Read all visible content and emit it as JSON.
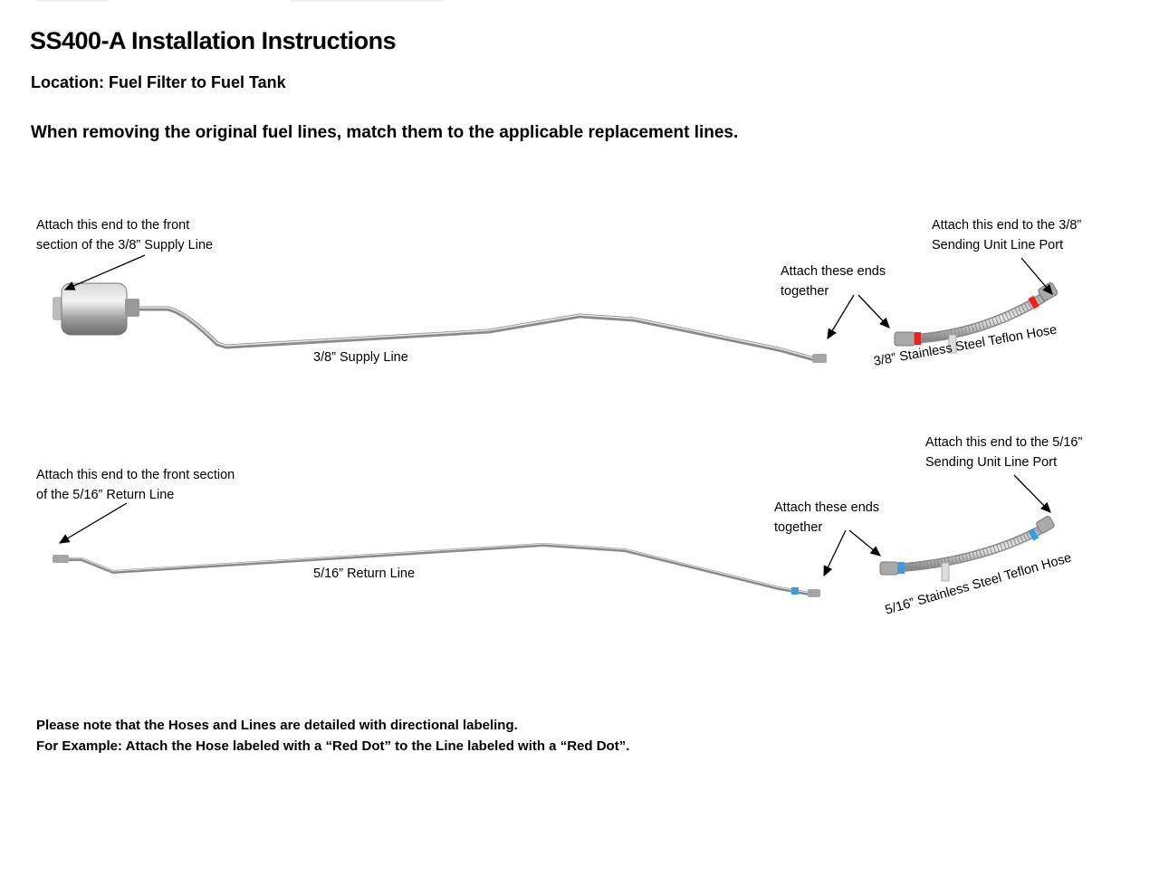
{
  "title": "SS400-A Installation Instructions",
  "location": "Location: Fuel Filter to Fuel Tank",
  "instruction": "When removing the original fuel lines, match them to the applicable replacement lines.",
  "supply": {
    "front_label_1": "Attach this end to the  front",
    "front_label_2": "section of the 3/8” Supply Line",
    "line_label": "3/8” Supply Line",
    "together_1": "Attach these ends",
    "together_2": "together",
    "port_1": "Attach this end to the 3/8”",
    "port_2": "Sending Unit Line Port",
    "hose_label": "3/8” Stainless Steel Teflon Hose",
    "mark_color": "#e8231f"
  },
  "return": {
    "front_label_1": "Attach this end to the front section",
    "front_label_2": "of the 5/16” Return Line",
    "line_label": "5/16” Return Line",
    "together_1": "Attach these ends",
    "together_2": "together",
    "port_1": "Attach this end to the 5/16”",
    "port_2": "Sending Unit Line Port",
    "hose_label": "5/16” Stainless Steel Teflon Hose",
    "mark_color": "#3a9be0"
  },
  "notes": [
    "Please note that the Hoses and Lines are detailed with directional labeling.",
    "For Example: Attach the Hose labeled with a “Red Dot” to the Line labeled with a “Red Dot”."
  ]
}
